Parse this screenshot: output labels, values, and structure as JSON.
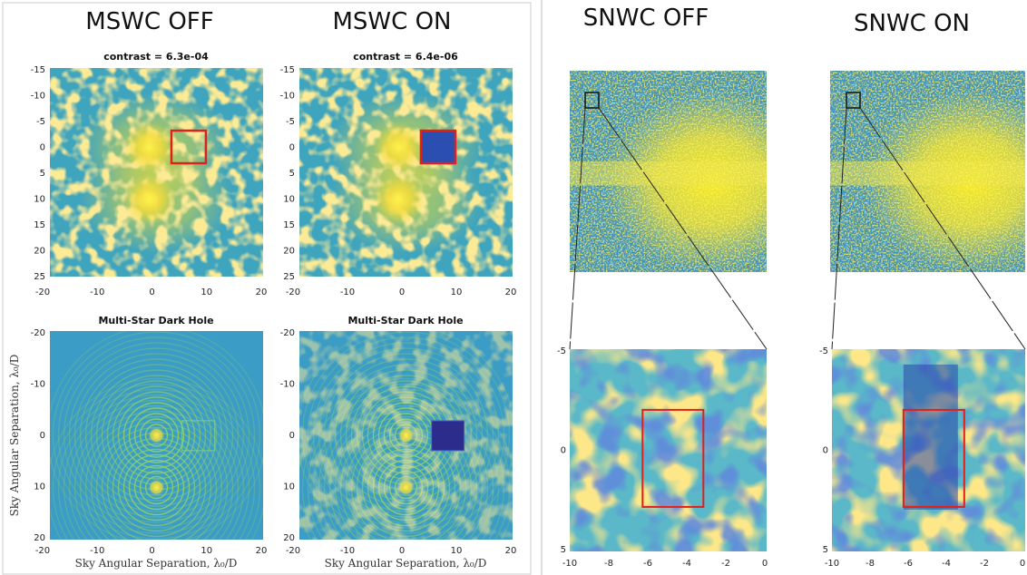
{
  "headings": [
    "MSWC OFF",
    "MSWC ON",
    "SNWC OFF",
    "SNWC ON"
  ],
  "panels": [
    {
      "title": "contrast = 6.3e-04",
      "yticks": [
        -15,
        -10,
        -5,
        0,
        5,
        10,
        15,
        20,
        25
      ],
      "xticks": [
        -20,
        -10,
        0,
        10,
        20
      ]
    },
    {
      "title": "contrast = 6.4e-06",
      "yticks": [
        -15,
        -10,
        -5,
        0,
        5,
        10,
        15,
        20,
        25
      ],
      "xticks": [
        -20,
        -10,
        0,
        10,
        20
      ]
    },
    {
      "title": "Multi-Star Dark Hole",
      "yticks": [
        -20,
        -10,
        0,
        10,
        20
      ],
      "xticks": [
        -20,
        -10,
        0,
        10,
        20
      ],
      "ylabel": "Sky Angular Separation, λ₀/D",
      "xlabel": "Sky Angular Separation, λ₀/D"
    },
    {
      "title": "Multi-Star Dark Hole",
      "yticks": [
        -20,
        -10,
        0,
        10,
        20
      ],
      "xticks": [
        -20,
        -10,
        0,
        10,
        20
      ],
      "xlabel": "Sky Angular Separation, λ₀/D"
    },
    {
      "yticks": [
        -5,
        0,
        5
      ],
      "xticks": [
        -10,
        -8,
        -6,
        -4,
        -2,
        0
      ]
    },
    {
      "yticks": [
        -5,
        0,
        5
      ],
      "xticks": [
        -10,
        -8,
        -6,
        -4,
        -2,
        0
      ]
    }
  ]
}
